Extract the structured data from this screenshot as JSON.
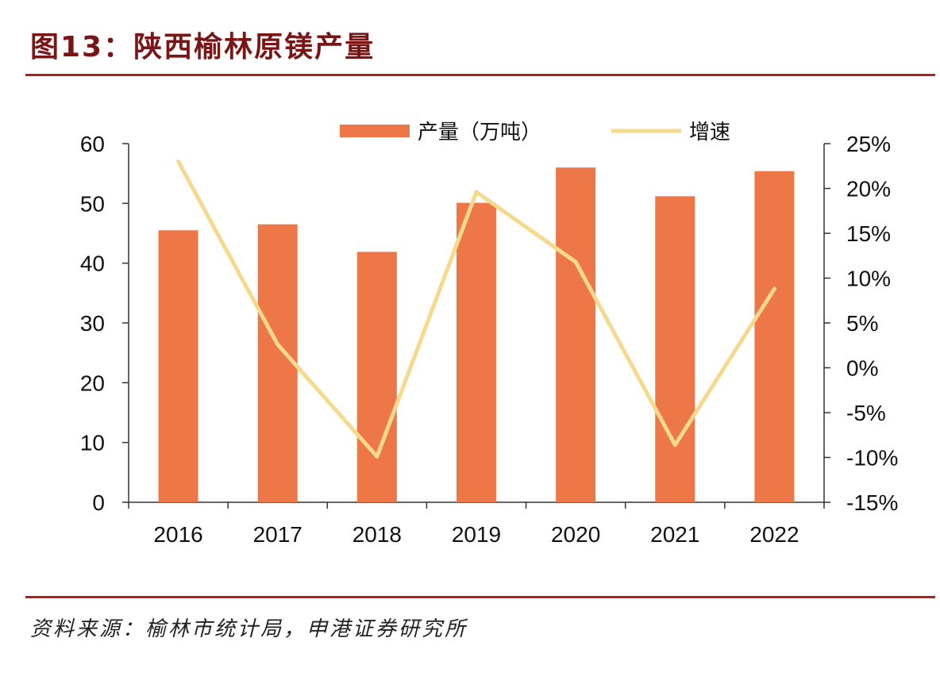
{
  "figure": {
    "title": "图13：陕西榆林原镁产量",
    "source": "资料来源：榆林市统计局，申港证券研究所"
  },
  "colors": {
    "bar": "#ee7747",
    "line": "#f5d98c",
    "title": "#7a1515",
    "rule": "#a8231c"
  },
  "chart_data": {
    "type": "bar",
    "categories": [
      "2016",
      "2017",
      "2018",
      "2019",
      "2020",
      "2021",
      "2022"
    ],
    "series": [
      {
        "name": "产量（万吨）",
        "type": "bar",
        "axis": "left",
        "values": [
          45.5,
          46.5,
          41.9,
          50.1,
          56.0,
          51.2,
          55.4
        ]
      },
      {
        "name": "增速",
        "type": "line",
        "axis": "right",
        "values": [
          23.0,
          2.6,
          -9.9,
          19.6,
          11.8,
          -8.6,
          8.8
        ]
      }
    ],
    "ylim": [
      0,
      60
    ],
    "yticks": [
      "0",
      "10",
      "20",
      "30",
      "40",
      "50",
      "60"
    ],
    "y2lim": [
      -15,
      25
    ],
    "y2ticks": [
      "-15%",
      "-10%",
      "-5%",
      "0%",
      "5%",
      "10%",
      "15%",
      "20%",
      "25%"
    ],
    "legend": "top",
    "grid": false
  }
}
